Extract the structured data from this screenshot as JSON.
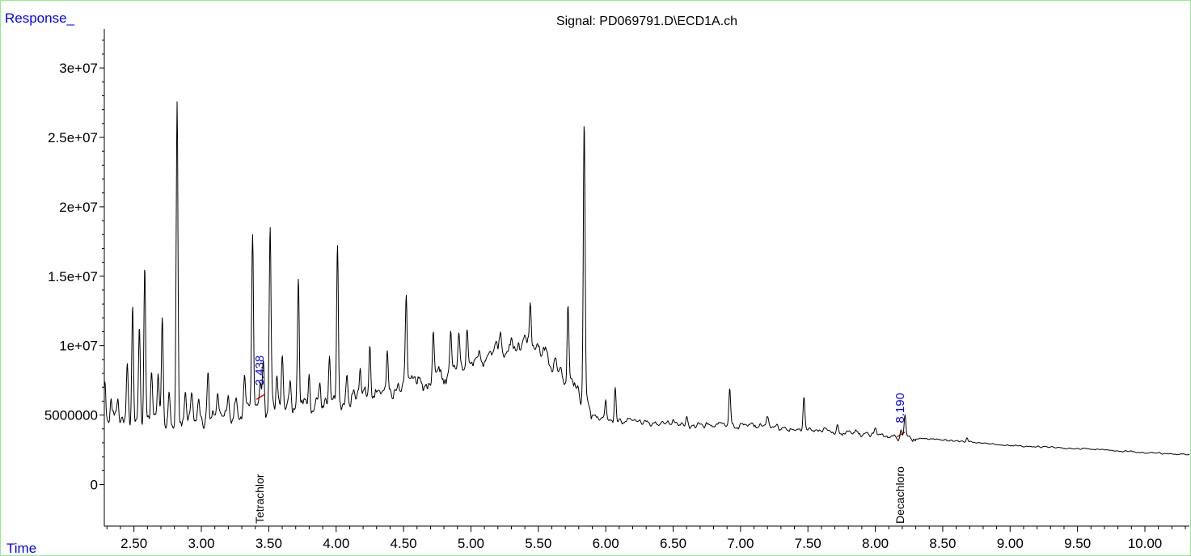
{
  "chart_data": {
    "type": "line",
    "title": "Signal: PD069791.D\\ECD1A.ch",
    "xlabel": "Time",
    "ylabel": "Response_",
    "xlim": [
      2.28,
      10.33
    ],
    "ylim": [
      -3000000,
      32800000
    ],
    "xticks": [
      2.5,
      3.0,
      3.5,
      4.0,
      4.5,
      5.0,
      5.5,
      6.0,
      6.5,
      7.0,
      7.5,
      8.0,
      8.5,
      9.0,
      9.5,
      10.0
    ],
    "xtick_labels": [
      "2.50",
      "3.00",
      "3.50",
      "4.00",
      "4.50",
      "5.00",
      "5.50",
      "6.00",
      "6.50",
      "7.00",
      "7.50",
      "8.00",
      "8.50",
      "9.00",
      "9.50",
      "10.00"
    ],
    "yticks": [
      0,
      5000000,
      10000000,
      15000000,
      20000000,
      25000000,
      30000000
    ],
    "ytick_labels": [
      "0",
      "5000000",
      "1e+07",
      "1.5e+07",
      "2e+07",
      "2.5e+07",
      "3e+07"
    ],
    "grid": false,
    "baseline": [
      [
        2.28,
        4800000
      ],
      [
        2.45,
        4500000
      ],
      [
        3.0,
        4700000
      ],
      [
        3.5,
        5500000
      ],
      [
        4.0,
        6000000
      ],
      [
        4.5,
        7000000
      ],
      [
        4.8,
        7800000
      ],
      [
        5.0,
        8600000
      ],
      [
        5.2,
        9700000
      ],
      [
        5.4,
        10200000
      ],
      [
        5.55,
        9500000
      ],
      [
        5.7,
        7600000
      ],
      [
        5.85,
        6000000
      ],
      [
        5.9,
        5000000
      ],
      [
        6.0,
        4600000
      ],
      [
        6.5,
        4300000
      ],
      [
        7.0,
        4200000
      ],
      [
        7.5,
        4000000
      ],
      [
        7.9,
        3700000
      ],
      [
        8.2,
        3400000
      ],
      [
        8.5,
        3200000
      ],
      [
        9.0,
        2800000
      ],
      [
        9.5,
        2600000
      ],
      [
        10.0,
        2300000
      ],
      [
        10.33,
        2150000
      ]
    ],
    "peaks": [
      [
        2.285,
        8000000
      ],
      [
        2.33,
        5800000
      ],
      [
        2.38,
        6100000
      ],
      [
        2.45,
        8400000
      ],
      [
        2.49,
        13200000
      ],
      [
        2.54,
        11200000
      ],
      [
        2.58,
        16300000
      ],
      [
        2.63,
        8500000
      ],
      [
        2.68,
        7600000
      ],
      [
        2.71,
        11800000
      ],
      [
        2.76,
        7000000
      ],
      [
        2.82,
        27500000
      ],
      [
        2.88,
        6700000
      ],
      [
        2.93,
        6500000
      ],
      [
        2.98,
        6300000
      ],
      [
        3.05,
        8000000
      ],
      [
        3.12,
        6200000
      ],
      [
        3.2,
        6600000
      ],
      [
        3.26,
        6300000
      ],
      [
        3.32,
        7600000
      ],
      [
        3.38,
        17400000
      ],
      [
        3.438,
        7100000
      ],
      [
        3.46,
        8300000
      ],
      [
        3.51,
        18600000
      ],
      [
        3.56,
        7200000
      ],
      [
        3.6,
        9000000
      ],
      [
        3.66,
        7900000
      ],
      [
        3.72,
        15100000
      ],
      [
        3.8,
        8200000
      ],
      [
        3.88,
        7500000
      ],
      [
        3.95,
        9600000
      ],
      [
        4.01,
        17400000
      ],
      [
        4.08,
        8200000
      ],
      [
        4.18,
        8600000
      ],
      [
        4.25,
        10200000
      ],
      [
        4.38,
        9500000
      ],
      [
        4.52,
        13800000
      ],
      [
        4.62,
        8100000
      ],
      [
        4.72,
        11000000
      ],
      [
        4.85,
        10800000
      ],
      [
        4.91,
        10800000
      ],
      [
        4.97,
        10800000
      ],
      [
        5.08,
        9500000
      ],
      [
        5.22,
        11200000
      ],
      [
        5.3,
        10400000
      ],
      [
        5.44,
        12700000
      ],
      [
        5.72,
        12900000
      ],
      [
        5.84,
        26500000
      ],
      [
        6.0,
        6100000
      ],
      [
        6.07,
        7200000
      ],
      [
        6.5,
        4800000
      ],
      [
        6.6,
        4800000
      ],
      [
        6.92,
        6900000
      ],
      [
        7.2,
        4800000
      ],
      [
        7.47,
        6400000
      ],
      [
        7.72,
        4500000
      ],
      [
        8.0,
        4000000
      ],
      [
        8.19,
        4100000
      ],
      [
        8.22,
        4900000
      ],
      [
        8.68,
        3400000
      ]
    ],
    "annotations": [
      {
        "x": 3.438,
        "y": 6300000,
        "text": "3.438",
        "compound": "Tetrachlor"
      },
      {
        "x": 8.19,
        "y": 3600000,
        "text": "8.190",
        "compound": "Decachloro"
      }
    ]
  },
  "colors": {
    "signal": "#000000",
    "axis": "#000000",
    "frame": "#90ee90",
    "corner_labels": "#0000ff",
    "retention_labels": "#0000ff",
    "integration_marks": "#ff0000",
    "compound_labels": "#000000"
  }
}
